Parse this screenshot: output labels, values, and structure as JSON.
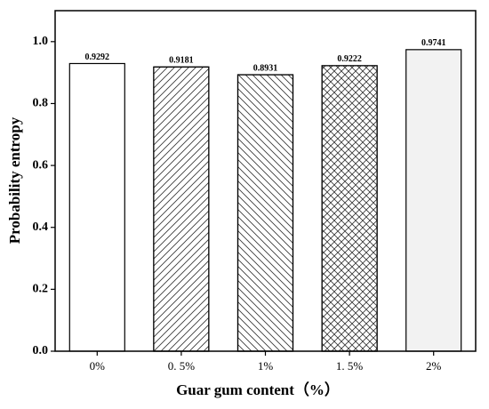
{
  "chart_data": {
    "type": "bar",
    "x_label": "Guar gum content（%）",
    "y_label": "Probability entropy",
    "categories": [
      "0%",
      "0. 5%",
      "1%",
      "1. 5%",
      "2%"
    ],
    "values": [
      0.9292,
      0.9181,
      0.8931,
      0.9222,
      0.9741
    ],
    "colors": [
      "#ffffff",
      "#ffffff",
      "#ffffff",
      "#ffffff",
      "#f2f2f2"
    ],
    "patterns": [
      "none",
      "forward",
      "backward",
      "cross",
      "none"
    ],
    "ylim": [
      0,
      1.1
    ],
    "yticks": [
      {
        "value": 0,
        "label": "0.0"
      },
      0.2,
      0.4,
      0.6,
      0.8,
      {
        "value": 1,
        "label": "1.0"
      }
    ]
  }
}
